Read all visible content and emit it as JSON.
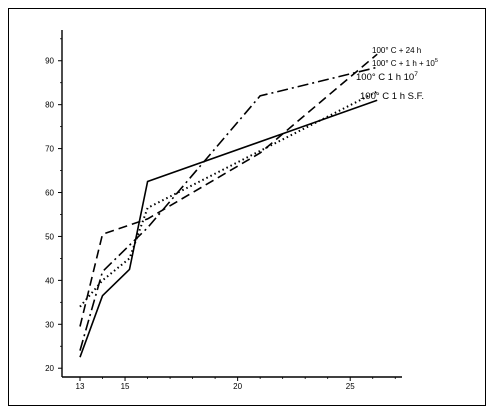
{
  "chart_data": {
    "type": "line",
    "title": "",
    "xlabel": "",
    "ylabel": "",
    "xlim": [
      12.2,
      27.3
    ],
    "ylim": [
      18.0,
      97.0
    ],
    "grid": false,
    "x_ticks": [
      13,
      15,
      20,
      25
    ],
    "y_ticks": [
      20,
      30,
      40,
      50,
      60,
      70,
      80,
      90
    ],
    "series": [
      {
        "name": "100° C + 24 h",
        "dash": "dash-dot",
        "x": [
          13,
          14,
          15.2,
          16,
          21,
          26.2
        ],
        "y": [
          24,
          42,
          48,
          52,
          82,
          88.5
        ]
      },
      {
        "name": "100° C + 1 h + 10",
        "name_sup": "5",
        "dash": "dashed",
        "x": [
          13,
          14,
          16,
          21,
          26.2
        ],
        "y": [
          29.5,
          50.5,
          54,
          69,
          91.5
        ]
      },
      {
        "name": "100° C 1 h 10",
        "name_sup": "7",
        "dash": "dotted",
        "x": [
          13,
          14,
          15.2,
          16,
          26.2
        ],
        "y": [
          34,
          40,
          45,
          56.5,
          83
        ]
      },
      {
        "name": "100° C 1 h S.F.",
        "dash": "solid",
        "x": [
          13,
          14,
          15.2,
          16,
          26.2
        ],
        "y": [
          22.5,
          36.5,
          42.5,
          62.5,
          81
        ]
      }
    ]
  }
}
